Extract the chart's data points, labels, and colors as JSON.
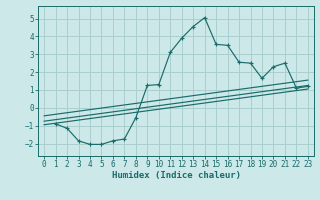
{
  "xlabel": "Humidex (Indice chaleur)",
  "ylabel": "",
  "bg_color": "#cce8e8",
  "line_color": "#1a6b6b",
  "grid_color": "#aacfcf",
  "xlim": [
    -0.5,
    23.5
  ],
  "ylim": [
    -2.7,
    5.7
  ],
  "xticks": [
    0,
    1,
    2,
    3,
    4,
    5,
    6,
    7,
    8,
    9,
    10,
    11,
    12,
    13,
    14,
    15,
    16,
    17,
    18,
    19,
    20,
    21,
    22,
    23
  ],
  "yticks": [
    -2,
    -1,
    0,
    1,
    2,
    3,
    4,
    5
  ],
  "main_x": [
    1,
    2,
    3,
    4,
    5,
    6,
    7,
    8,
    9,
    10,
    11,
    12,
    13,
    14,
    15,
    16,
    17,
    18,
    19,
    20,
    21,
    22,
    23
  ],
  "main_y": [
    -0.9,
    -1.15,
    -1.85,
    -2.05,
    -2.05,
    -1.85,
    -1.75,
    -0.55,
    1.25,
    1.3,
    3.1,
    3.9,
    4.55,
    5.05,
    3.55,
    3.5,
    2.55,
    2.5,
    1.65,
    2.3,
    2.5,
    1.1,
    1.2
  ],
  "trend1_x": [
    0,
    23
  ],
  "trend1_y": [
    -0.75,
    1.25
  ],
  "trend2_x": [
    0,
    23
  ],
  "trend2_y": [
    -0.45,
    1.55
  ],
  "trend3_x": [
    0,
    23
  ],
  "trend3_y": [
    -0.95,
    1.05
  ],
  "tick_fontsize": 5.5,
  "xlabel_fontsize": 6.5
}
